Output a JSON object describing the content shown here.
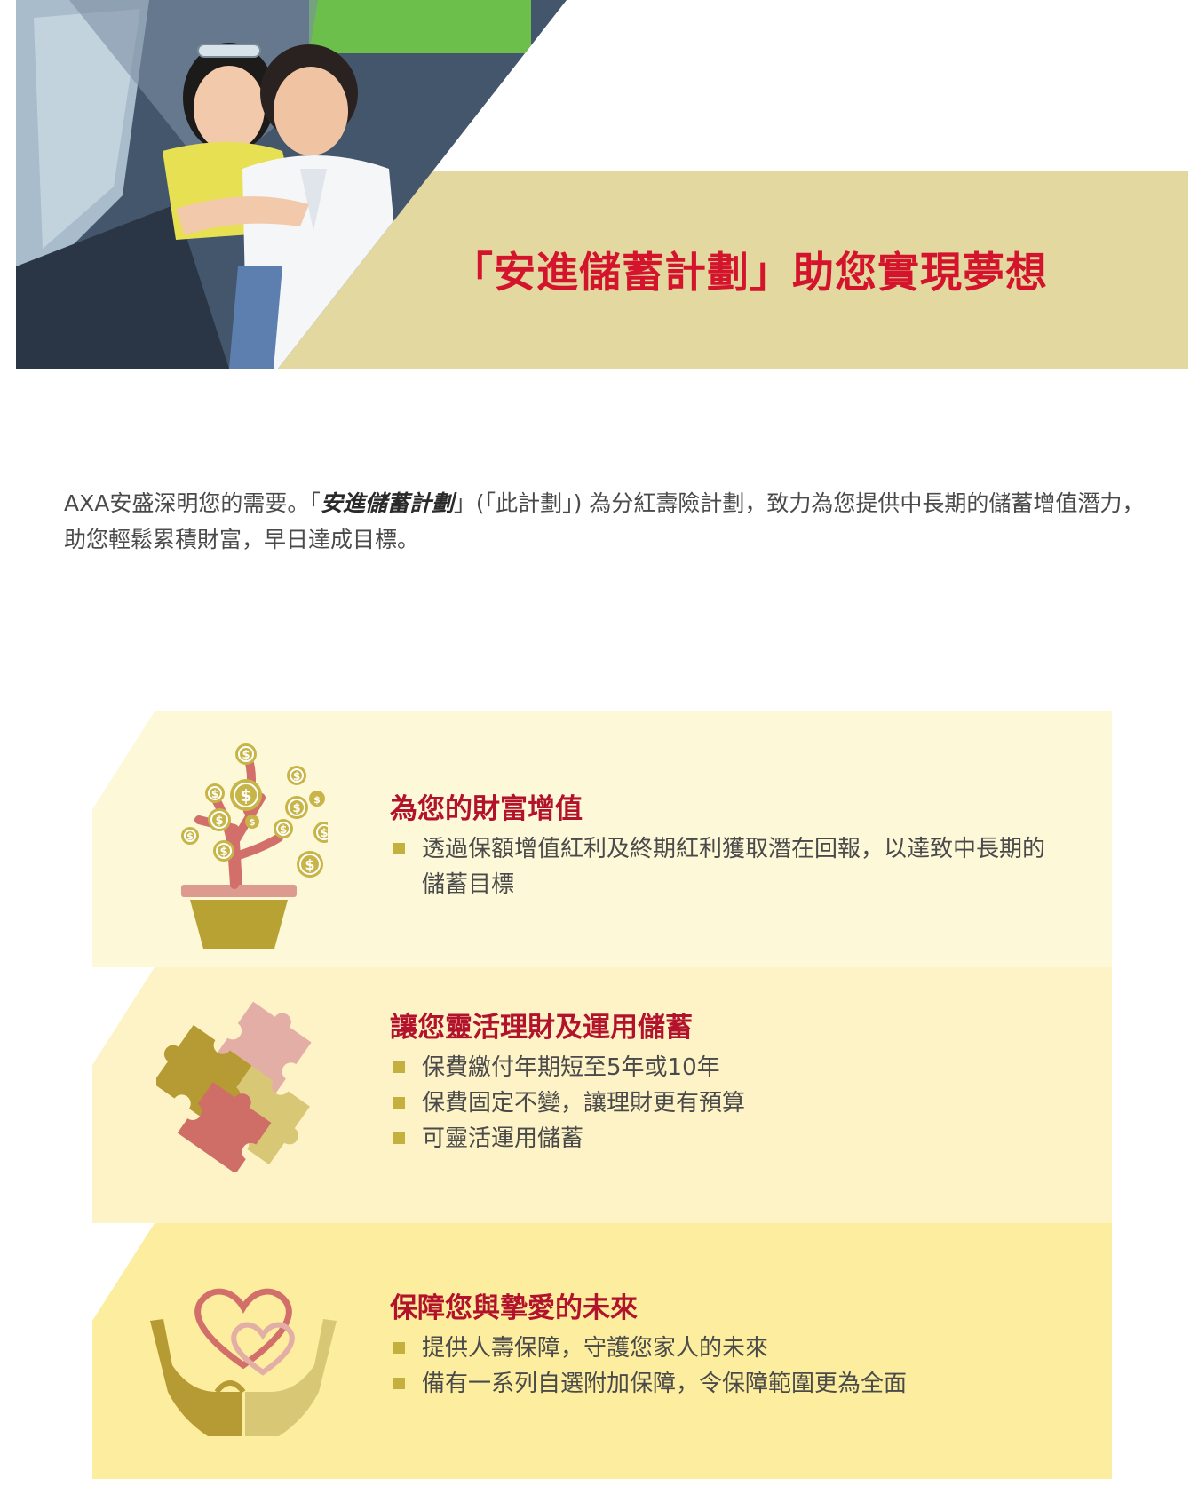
{
  "hero": {
    "title": "「安進儲蓄計劃」助您實現夢想",
    "photo_alt": "young couple sitting in a car"
  },
  "intro": {
    "part1": "AXA安盛深明您的需要。「",
    "plan_name": "安進儲蓄計劃",
    "part2": "」(「此計劃」) 為分紅壽險計劃，致力為您提供中長期的儲蓄增值潛力，助您輕鬆累積財富，早日達成目標。"
  },
  "features": [
    {
      "heading": "為您的財富增值",
      "icon": "money-tree-icon",
      "bullets": [
        "透過保額增值紅利及終期紅利獲取潛在回報，以達致中長期的儲蓄目標"
      ]
    },
    {
      "heading": "讓您靈活理財及運用儲蓄",
      "icon": "puzzle-icon",
      "bullets": [
        "保費繳付年期短至5年或10年",
        "保費固定不變，讓理財更有預算",
        "可靈活運用儲蓄"
      ]
    },
    {
      "heading": "保障您與摯愛的未來",
      "icon": "hands-hearts-icon",
      "bullets": [
        "提供人壽保障，守護您家人的未來",
        "備有一系列自選附加保障，令保障範圍更為全面"
      ]
    }
  ],
  "colors": {
    "title_red": "#d4142c",
    "heading_red": "#b3122d",
    "band_gold": "#e2d8a0",
    "bullet_gold": "#c4b03e"
  }
}
